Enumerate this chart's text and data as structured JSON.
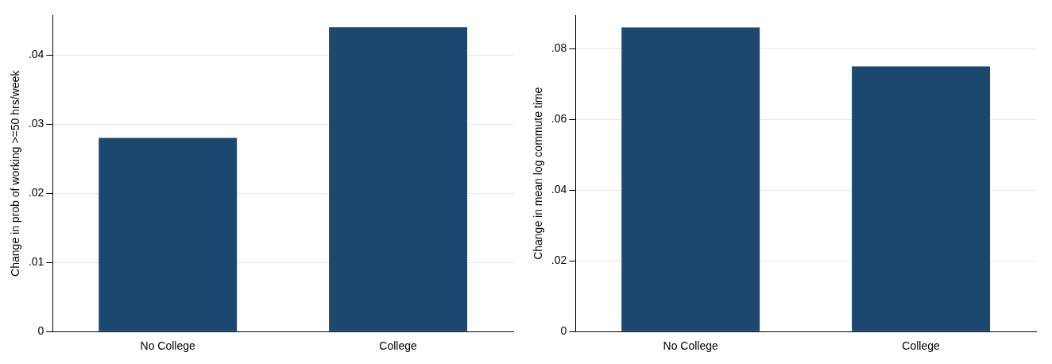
{
  "chart_data": [
    {
      "type": "bar",
      "ylabel": "Change in prob of working >=50 hrs/week",
      "categories": [
        "No College",
        "College"
      ],
      "values": [
        0.028,
        0.044
      ],
      "color": "#1c4870",
      "ylim": [
        0,
        0.0457
      ],
      "yticks": [
        {
          "value": 0,
          "label": "0"
        },
        {
          "value": 0.01,
          "label": ".01"
        },
        {
          "value": 0.02,
          "label": ".02"
        },
        {
          "value": 0.03,
          "label": ".03"
        },
        {
          "value": 0.04,
          "label": ".04"
        }
      ],
      "grid": "y"
    },
    {
      "type": "bar",
      "ylabel": "Change in mean log commute time",
      "categories": [
        "No College",
        "College"
      ],
      "values": [
        0.086,
        0.075
      ],
      "color": "#1c4870",
      "ylim": [
        0,
        0.0894
      ],
      "yticks": [
        {
          "value": 0,
          "label": "0"
        },
        {
          "value": 0.02,
          "label": ".02"
        },
        {
          "value": 0.04,
          "label": ".04"
        },
        {
          "value": 0.06,
          "label": ".06"
        },
        {
          "value": 0.08,
          "label": ".08"
        }
      ],
      "grid": "y"
    }
  ]
}
